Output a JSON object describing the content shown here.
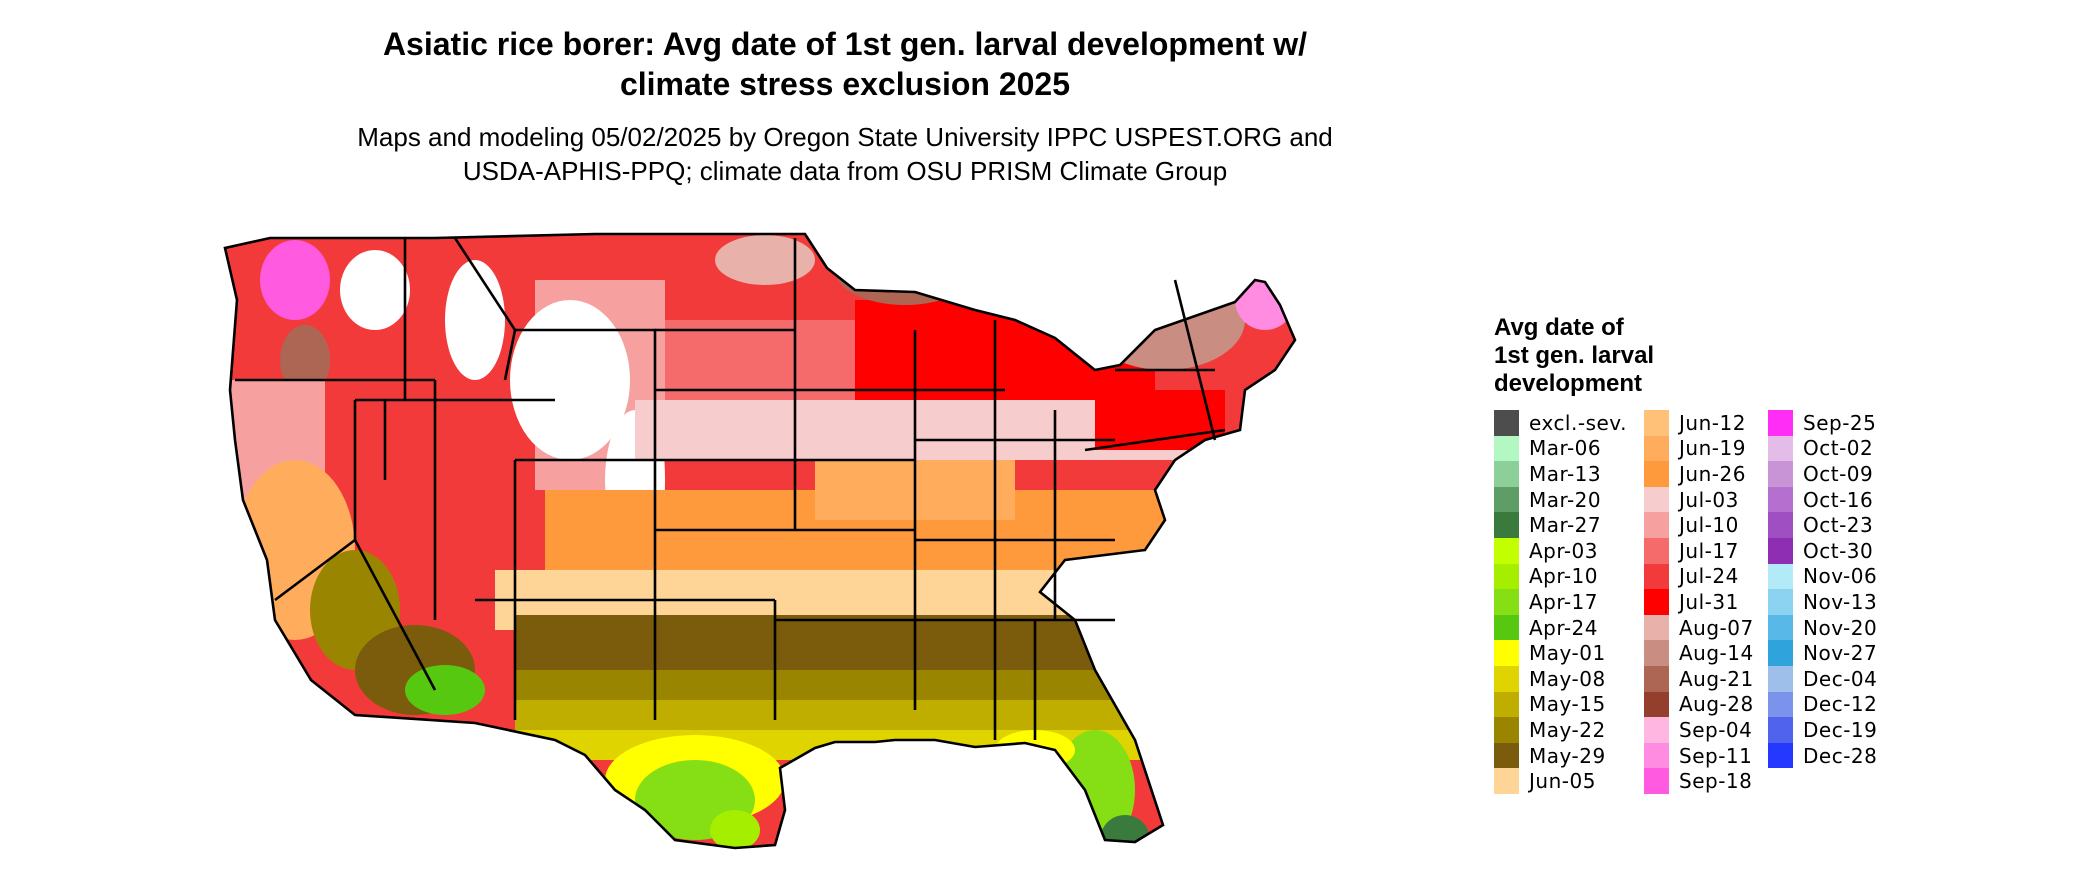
{
  "title": {
    "line1": "Asiatic rice borer: Avg date of 1st gen. larval development w/",
    "line2": "climate stress exclusion 2025"
  },
  "subtitle": {
    "line1": "Maps and modeling 05/02/2025 by Oregon State University IPPC USPEST.ORG and",
    "line2": "USDA-APHIS-PPQ; climate data from OSU PRISM Climate Group"
  },
  "legend": {
    "title_lines": [
      "Avg date of",
      "1st gen. larval",
      "development"
    ],
    "columns": [
      [
        {
          "label": "excl.-sev.",
          "color": "#4d4d4d"
        },
        {
          "label": "Mar-06",
          "color": "#b3f7c2"
        },
        {
          "label": "Mar-13",
          "color": "#8ccf98"
        },
        {
          "label": "Mar-20",
          "color": "#5e9e66"
        },
        {
          "label": "Mar-27",
          "color": "#3a7a3c"
        },
        {
          "label": "Apr-03",
          "color": "#c2ff00"
        },
        {
          "label": "Apr-10",
          "color": "#a6ee00"
        },
        {
          "label": "Apr-17",
          "color": "#86de14"
        },
        {
          "label": "Apr-24",
          "color": "#56c810"
        },
        {
          "label": "May-01",
          "color": "#ffff00"
        },
        {
          "label": "May-08",
          "color": "#dfd300"
        },
        {
          "label": "May-15",
          "color": "#bfae00"
        },
        {
          "label": "May-22",
          "color": "#9a8500"
        },
        {
          "label": "May-29",
          "color": "#7a5c0c"
        },
        {
          "label": "Jun-05",
          "color": "#ffd597"
        }
      ],
      [
        {
          "label": "Jun-12",
          "color": "#ffc178"
        },
        {
          "label": "Jun-19",
          "color": "#ffad5d"
        },
        {
          "label": "Jun-26",
          "color": "#ff9a3c"
        },
        {
          "label": "Jul-03",
          "color": "#f7cccc"
        },
        {
          "label": "Jul-10",
          "color": "#f6a0a0"
        },
        {
          "label": "Jul-17",
          "color": "#f56b6b"
        },
        {
          "label": "Jul-24",
          "color": "#f33a3a"
        },
        {
          "label": "Jul-31",
          "color": "#ff0000"
        },
        {
          "label": "Aug-07",
          "color": "#e8b1a9"
        },
        {
          "label": "Aug-14",
          "color": "#c98d82"
        },
        {
          "label": "Aug-21",
          "color": "#ad6654"
        },
        {
          "label": "Aug-28",
          "color": "#943f2d"
        },
        {
          "label": "Sep-04",
          "color": "#ffb7e1"
        },
        {
          "label": "Sep-11",
          "color": "#ff8ce0"
        },
        {
          "label": "Sep-18",
          "color": "#ff5ae0"
        }
      ],
      [
        {
          "label": "Sep-25",
          "color": "#ff2df5"
        },
        {
          "label": "Oct-02",
          "color": "#e3bde8"
        },
        {
          "label": "Oct-09",
          "color": "#c994d6"
        },
        {
          "label": "Oct-16",
          "color": "#b56fcf"
        },
        {
          "label": "Oct-23",
          "color": "#a04fc2"
        },
        {
          "label": "Oct-30",
          "color": "#8d2eb3"
        },
        {
          "label": "Nov-06",
          "color": "#b2ebf7"
        },
        {
          "label": "Nov-13",
          "color": "#8cd3f2"
        },
        {
          "label": "Nov-20",
          "color": "#58b9e8"
        },
        {
          "label": "Nov-27",
          "color": "#2fa3dc"
        },
        {
          "label": "Dec-04",
          "color": "#9fbfeb"
        },
        {
          "label": "Dec-12",
          "color": "#7b93ea"
        },
        {
          "label": "Dec-19",
          "color": "#5063ec"
        },
        {
          "label": "Dec-28",
          "color": "#2438ff"
        }
      ]
    ]
  }
}
